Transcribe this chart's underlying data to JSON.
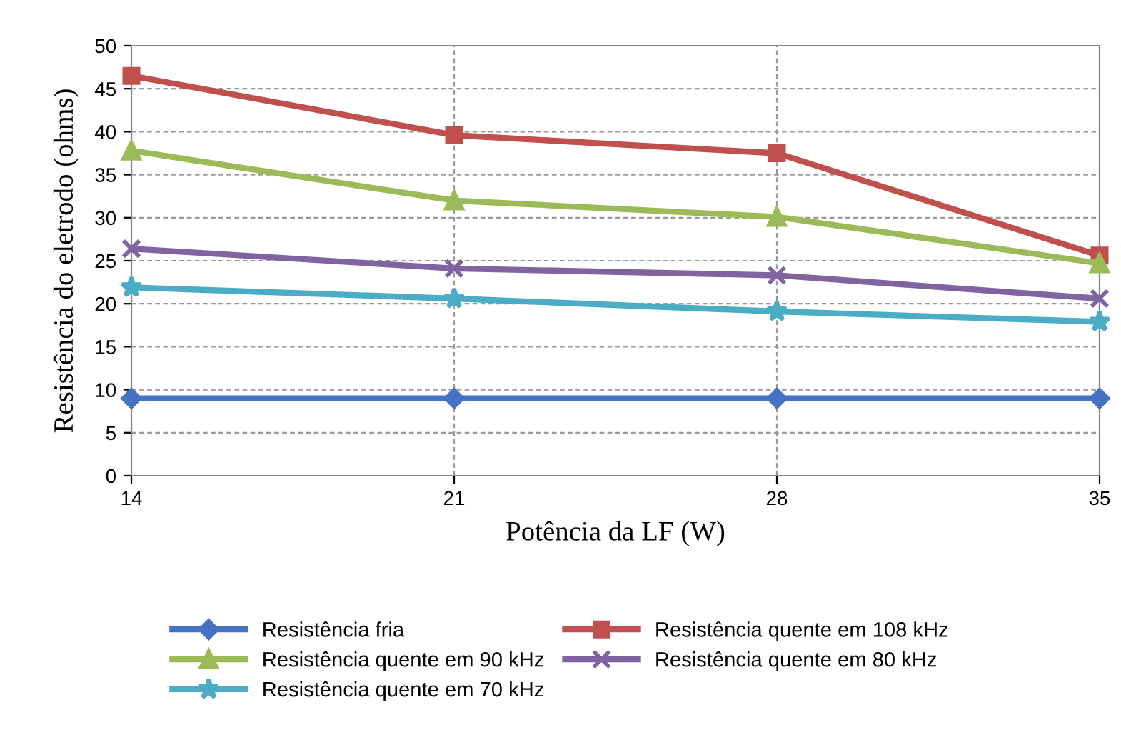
{
  "chart_data": {
    "type": "line",
    "xlabel": "Potência da LF (W)",
    "ylabel": "Resistência do eletrodo (ohms)",
    "x": [
      14,
      21,
      28,
      35
    ],
    "xlim": [
      14,
      35
    ],
    "xticks": [
      14,
      21,
      28,
      35
    ],
    "ylim": [
      0,
      50
    ],
    "yticks": [
      0,
      5,
      10,
      15,
      20,
      25,
      30,
      35,
      40,
      45,
      50
    ],
    "grid": true,
    "legend": "bottom",
    "series": [
      {
        "name": "Resistência fria",
        "color": "#4472c4",
        "marker": "diamond",
        "values": [
          9,
          9,
          9,
          9
        ]
      },
      {
        "name": "Resistência quente em 108 kHz",
        "color": "#c0504d",
        "marker": "square",
        "values": [
          46.5,
          39.6,
          37.5,
          25.6
        ]
      },
      {
        "name": "Resistência quente em 90 kHz",
        "color": "#9bbb59",
        "marker": "triangle",
        "values": [
          37.8,
          32,
          30.1,
          24.7
        ]
      },
      {
        "name": "Resistência quente em 80 kHz",
        "color": "#8064a2",
        "marker": "cross",
        "values": [
          26.4,
          24.1,
          23.3,
          20.6
        ]
      },
      {
        "name": "Resistência quente em 70 kHz",
        "color": "#4bacc6",
        "marker": "star",
        "values": [
          21.9,
          20.6,
          19.1,
          17.9
        ]
      }
    ]
  }
}
